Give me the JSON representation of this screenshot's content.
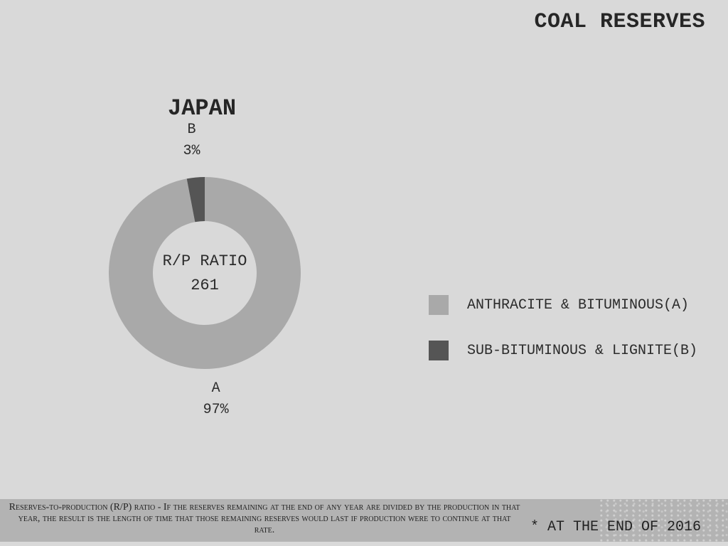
{
  "header": {
    "title": "COAL RESERVES"
  },
  "chart_data": {
    "type": "pie",
    "title": "JAPAN",
    "categories": [
      "A",
      "B"
    ],
    "values": [
      97,
      3
    ],
    "value_labels": [
      "97%",
      "3%"
    ],
    "colors": [
      "#a9a9a9",
      "#555555"
    ],
    "legend": [
      "ANTHRACITE & BITUMINOUS(A)",
      "SUB-BITUMINOUS & LIGNITE(B)"
    ],
    "legend_position": "right",
    "center_label": "R/P RATIO",
    "center_value": "261"
  },
  "footer": {
    "note": "Reserves-to-production (R/P) ratio - If the reserves remaining at the end of any year are divided by the production in that year, the result is the length of time that those remaining reserves would last if production were to continue at that rate.",
    "date_note": "* AT THE END OF 2016"
  }
}
